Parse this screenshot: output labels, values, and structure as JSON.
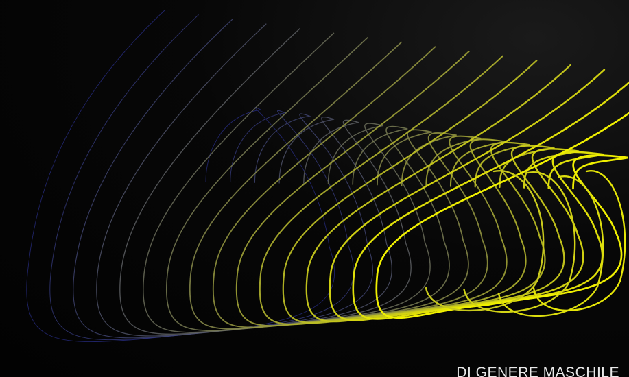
{
  "caption": "DI GENERE MASCHILE",
  "palette": {
    "background": "#050505",
    "curve_start": "#2a2f8a",
    "curve_end": "#f0f000"
  }
}
